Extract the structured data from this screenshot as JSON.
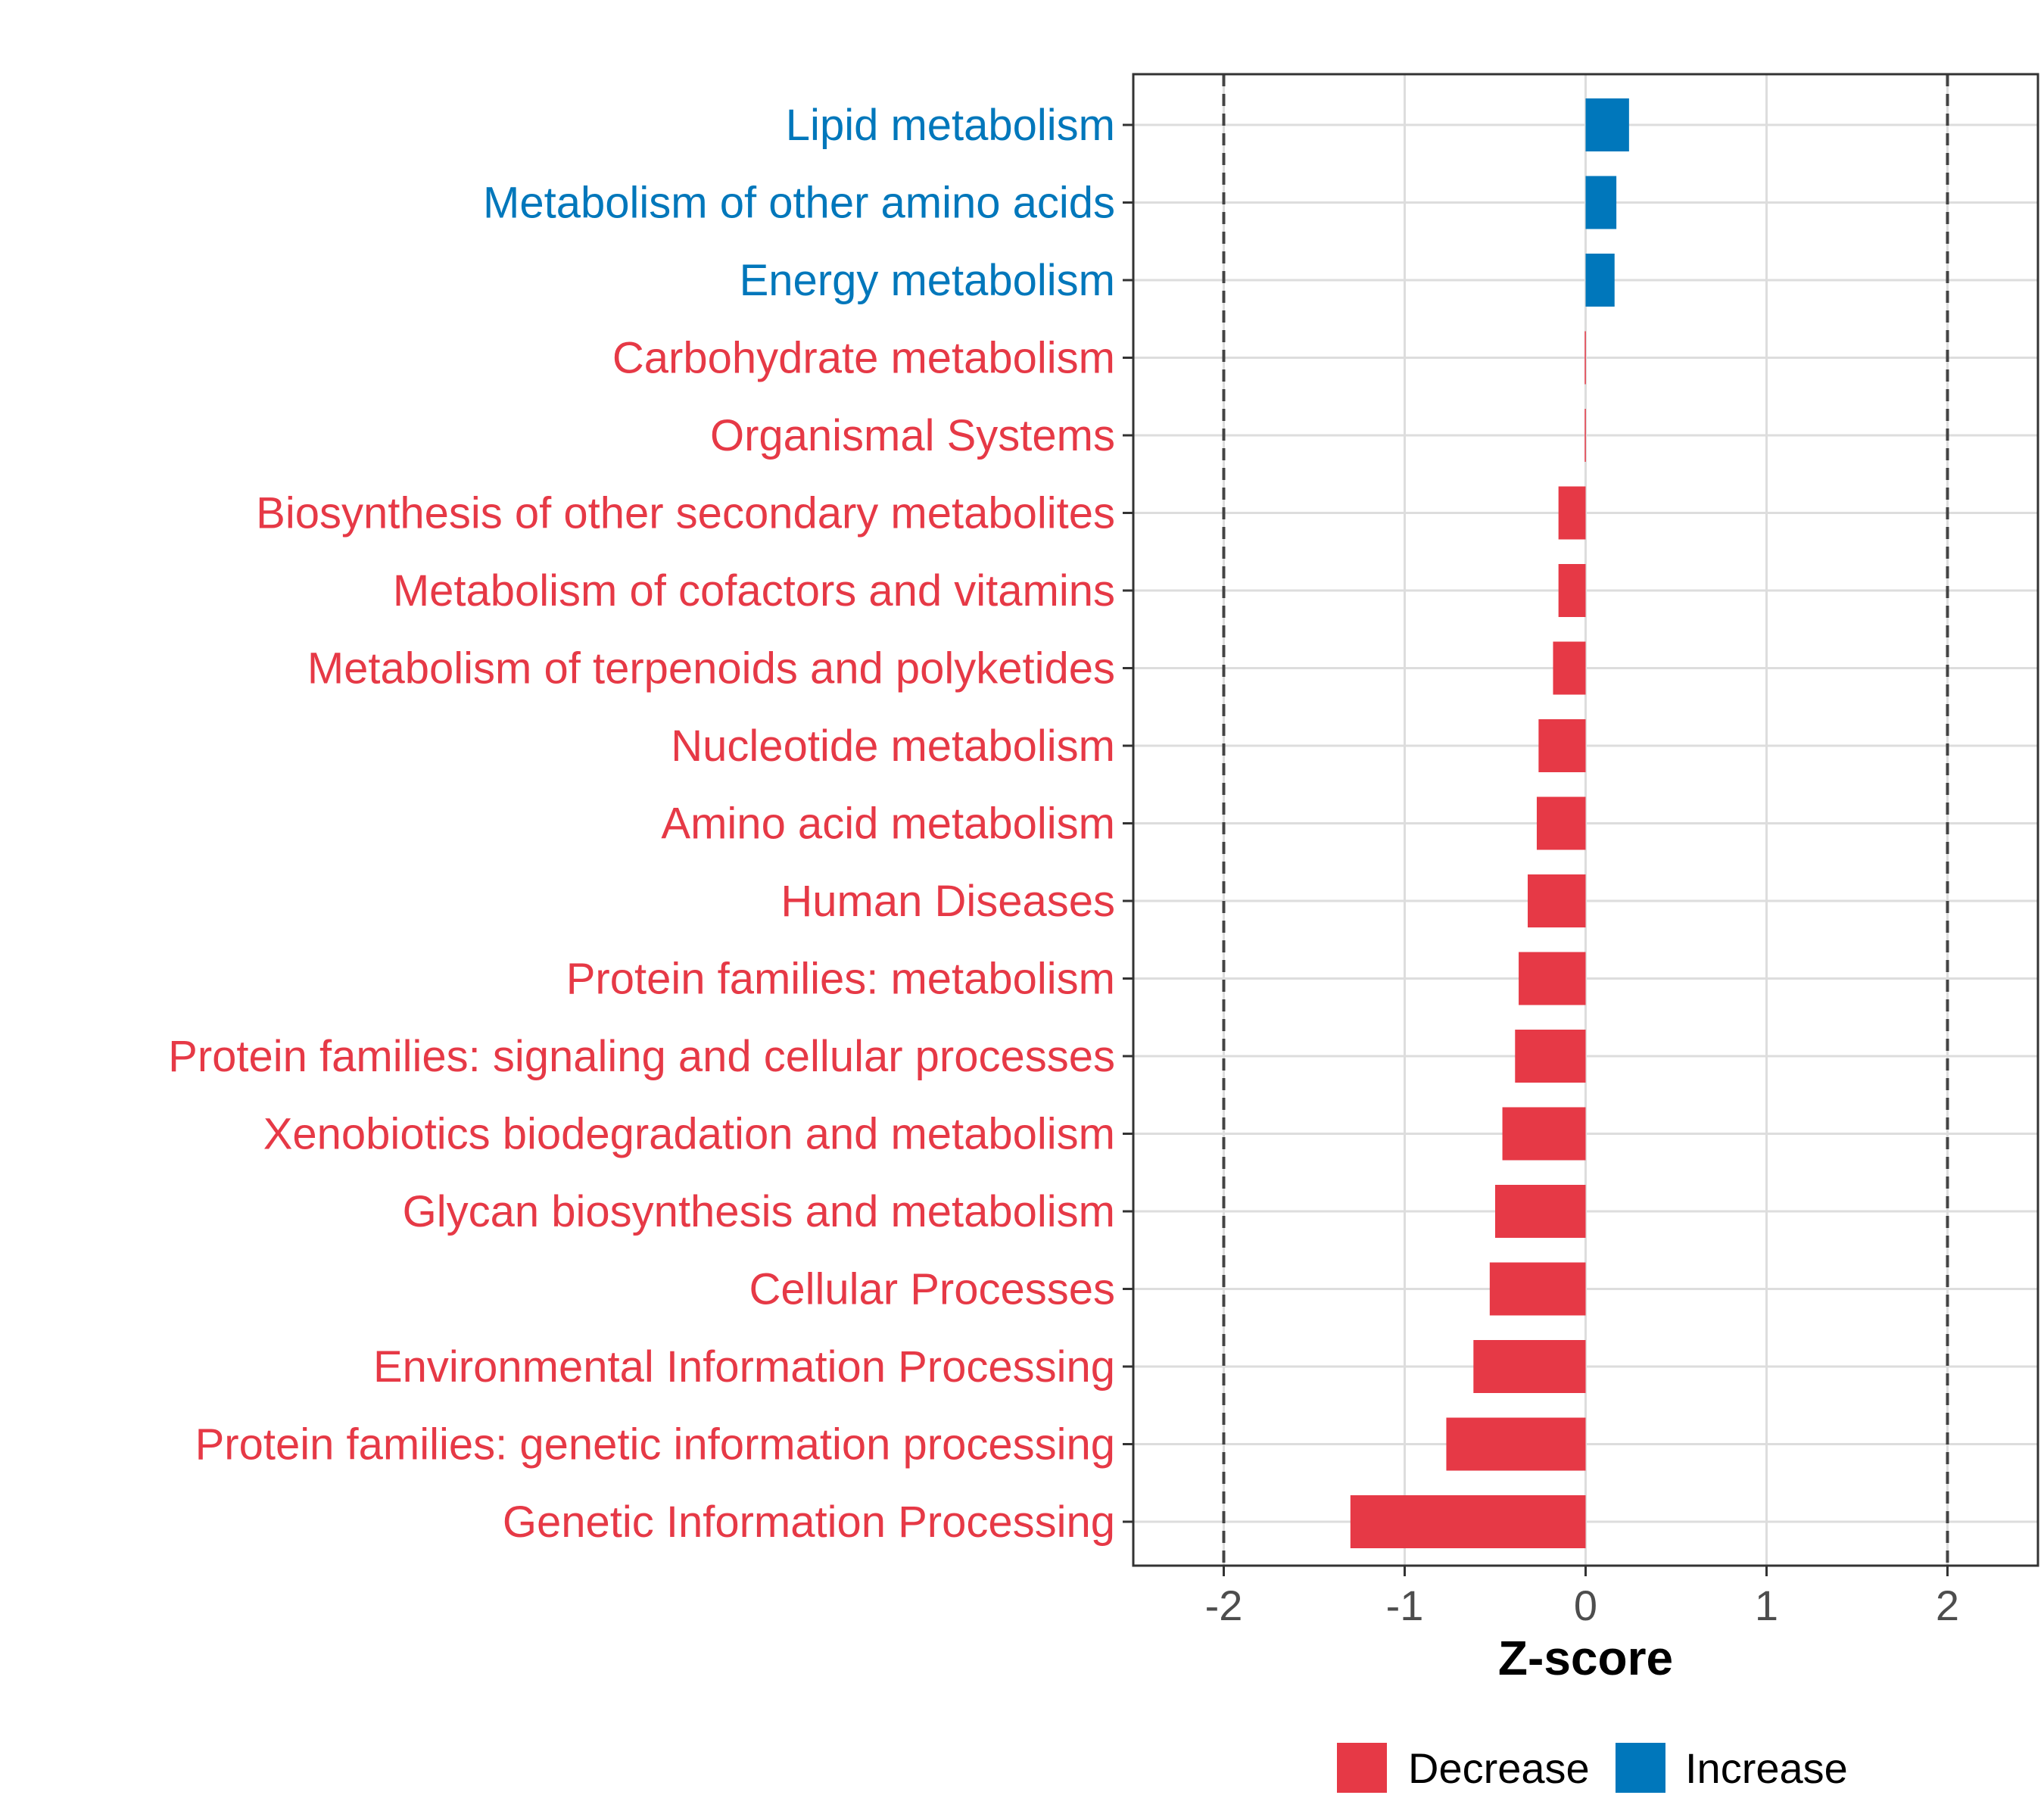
{
  "chart_data": {
    "type": "bar",
    "orientation": "horizontal",
    "title": "",
    "xlabel": "Z-score",
    "ylabel": "",
    "xlim": [
      -2.5,
      2.5
    ],
    "xticks": [
      -2,
      -1,
      0,
      1,
      2
    ],
    "xtick_labels": [
      "-2",
      "-1",
      "0",
      "1",
      "2"
    ],
    "reference_lines": [
      -2,
      2
    ],
    "grid": true,
    "categories": [
      "Lipid metabolism",
      "Metabolism of other amino acids",
      "Energy metabolism",
      "Carbohydrate metabolism",
      "Organismal Systems",
      "Biosynthesis of other secondary metabolites",
      "Metabolism of cofactors and vitamins",
      "Metabolism of terpenoids and polyketides",
      "Nucleotide metabolism",
      "Amino acid metabolism",
      "Human Diseases",
      "Protein families: metabolism",
      "Protein families: signaling and cellular processes",
      "Xenobiotics biodegradation and metabolism",
      "Glycan biosynthesis and metabolism",
      "Cellular Processes",
      "Environmental Information Processing",
      "Protein families: genetic information processing",
      "Genetic Information Processing"
    ],
    "values": [
      0.24,
      0.17,
      0.16,
      -0.005,
      -0.005,
      -0.15,
      -0.15,
      -0.18,
      -0.26,
      -0.27,
      -0.32,
      -0.37,
      -0.39,
      -0.46,
      -0.5,
      -0.53,
      -0.62,
      -0.77,
      -1.3
    ],
    "groups": [
      "Increase",
      "Increase",
      "Increase",
      "Decrease",
      "Decrease",
      "Decrease",
      "Decrease",
      "Decrease",
      "Decrease",
      "Decrease",
      "Decrease",
      "Decrease",
      "Decrease",
      "Decrease",
      "Decrease",
      "Decrease",
      "Decrease",
      "Decrease",
      "Decrease"
    ],
    "legend": {
      "placement": "bottom",
      "entries": [
        {
          "name": "Decrease",
          "color": "#E63946"
        },
        {
          "name": "Increase",
          "color": "#0077BB"
        }
      ]
    },
    "colors": {
      "Decrease": "#E63946",
      "Increase": "#0077BB"
    }
  }
}
